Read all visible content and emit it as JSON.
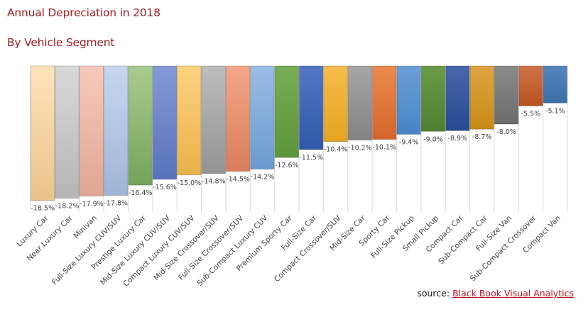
{
  "chart_data": {
    "type": "bar",
    "title": "Annual Depreciation in 2018",
    "subtitle": "By Vehicle Segment",
    "xlabel": "",
    "ylabel": "",
    "ylim": [
      -18.5,
      0
    ],
    "grid": false,
    "legend": "none",
    "value_suffix": "%",
    "categories": [
      "Luxury Car",
      "Near Luxury Car",
      "Minivan",
      "Full-Size Luxury CUV/SUV",
      "Prestige Luxury Car",
      "Mid-Size Luxury CUV/SUV",
      "Compact Luxury CUV/SUV",
      "Mid-Size Crossover/SUV",
      "Full-Size Crossover/SUV",
      "Sub-Compact Luxury CUV",
      "Premium Sporty Car",
      "Full-Size Car",
      "Compact Crossover/SUV",
      "Mid-Size Car",
      "Sporty Car",
      "Full-Size Pickup",
      "Small Pickup",
      "Compact Car",
      "Sub-Compact Car",
      "Full-Size Van",
      "Sub-Compact Crossover",
      "Compact Van"
    ],
    "values": [
      -18.5,
      -18.2,
      -17.9,
      -17.8,
      -16.4,
      -15.6,
      -15.0,
      -14.8,
      -14.5,
      -14.2,
      -12.6,
      -11.5,
      -10.4,
      -10.2,
      -10.1,
      -9.4,
      -9.0,
      -8.9,
      -8.7,
      -8.0,
      -5.5,
      -5.1
    ],
    "data_labels": [
      "-18.5%",
      "-18.2%",
      "-17.9%",
      "-17.8%",
      "-16.4%",
      "-15.6%",
      "-15.0%",
      "-14.8%",
      "-14.5%",
      "-14.2%",
      "-12.6%",
      "-11.5%",
      "-10.4%",
      "-10.2%",
      "-10.1%",
      "-9.4%",
      "-9.0%",
      "-8.9%",
      "-8.7%",
      "-8.0%",
      "-5.5%",
      "-5.1%"
    ],
    "colors": [
      [
        "#ffe3b8",
        "#e8c48c"
      ],
      [
        "#d9d9d9",
        "#b5b5b5"
      ],
      [
        "#f7c9bb",
        "#e0a693"
      ],
      [
        "#c6d7ef",
        "#9fb5d6"
      ],
      [
        "#a9cc8f",
        "#74a35a"
      ],
      [
        "#8599d6",
        "#5873bb"
      ],
      [
        "#ffd27f",
        "#e8b24a"
      ],
      [
        "#bdbdbd",
        "#939393"
      ],
      [
        "#f4a789",
        "#d97d5b"
      ],
      [
        "#9bbde6",
        "#6c9ad0"
      ],
      [
        "#77ad55",
        "#5a953c"
      ],
      [
        "#5577c4",
        "#2e58a8"
      ],
      [
        "#f7bc4a",
        "#e3a520"
      ],
      [
        "#a6a6a6",
        "#838383"
      ],
      [
        "#ea8a4f",
        "#d5652a"
      ],
      [
        "#6a9fd6",
        "#4784c6"
      ],
      [
        "#6c9c47",
        "#4e7f2f"
      ],
      [
        "#4a66ad",
        "#244a91"
      ],
      [
        "#dea440",
        "#c88a16"
      ],
      [
        "#8c8c8c",
        "#6b6b6b"
      ],
      [
        "#cf7348",
        "#b6511f"
      ],
      [
        "#5586bd",
        "#3b6fa6"
      ]
    ]
  },
  "source": {
    "label": "source:",
    "link_text": "Black Book Visual Analytics"
  },
  "colors": {
    "title": "#9b1b1f",
    "source_link": "#c0111f"
  }
}
